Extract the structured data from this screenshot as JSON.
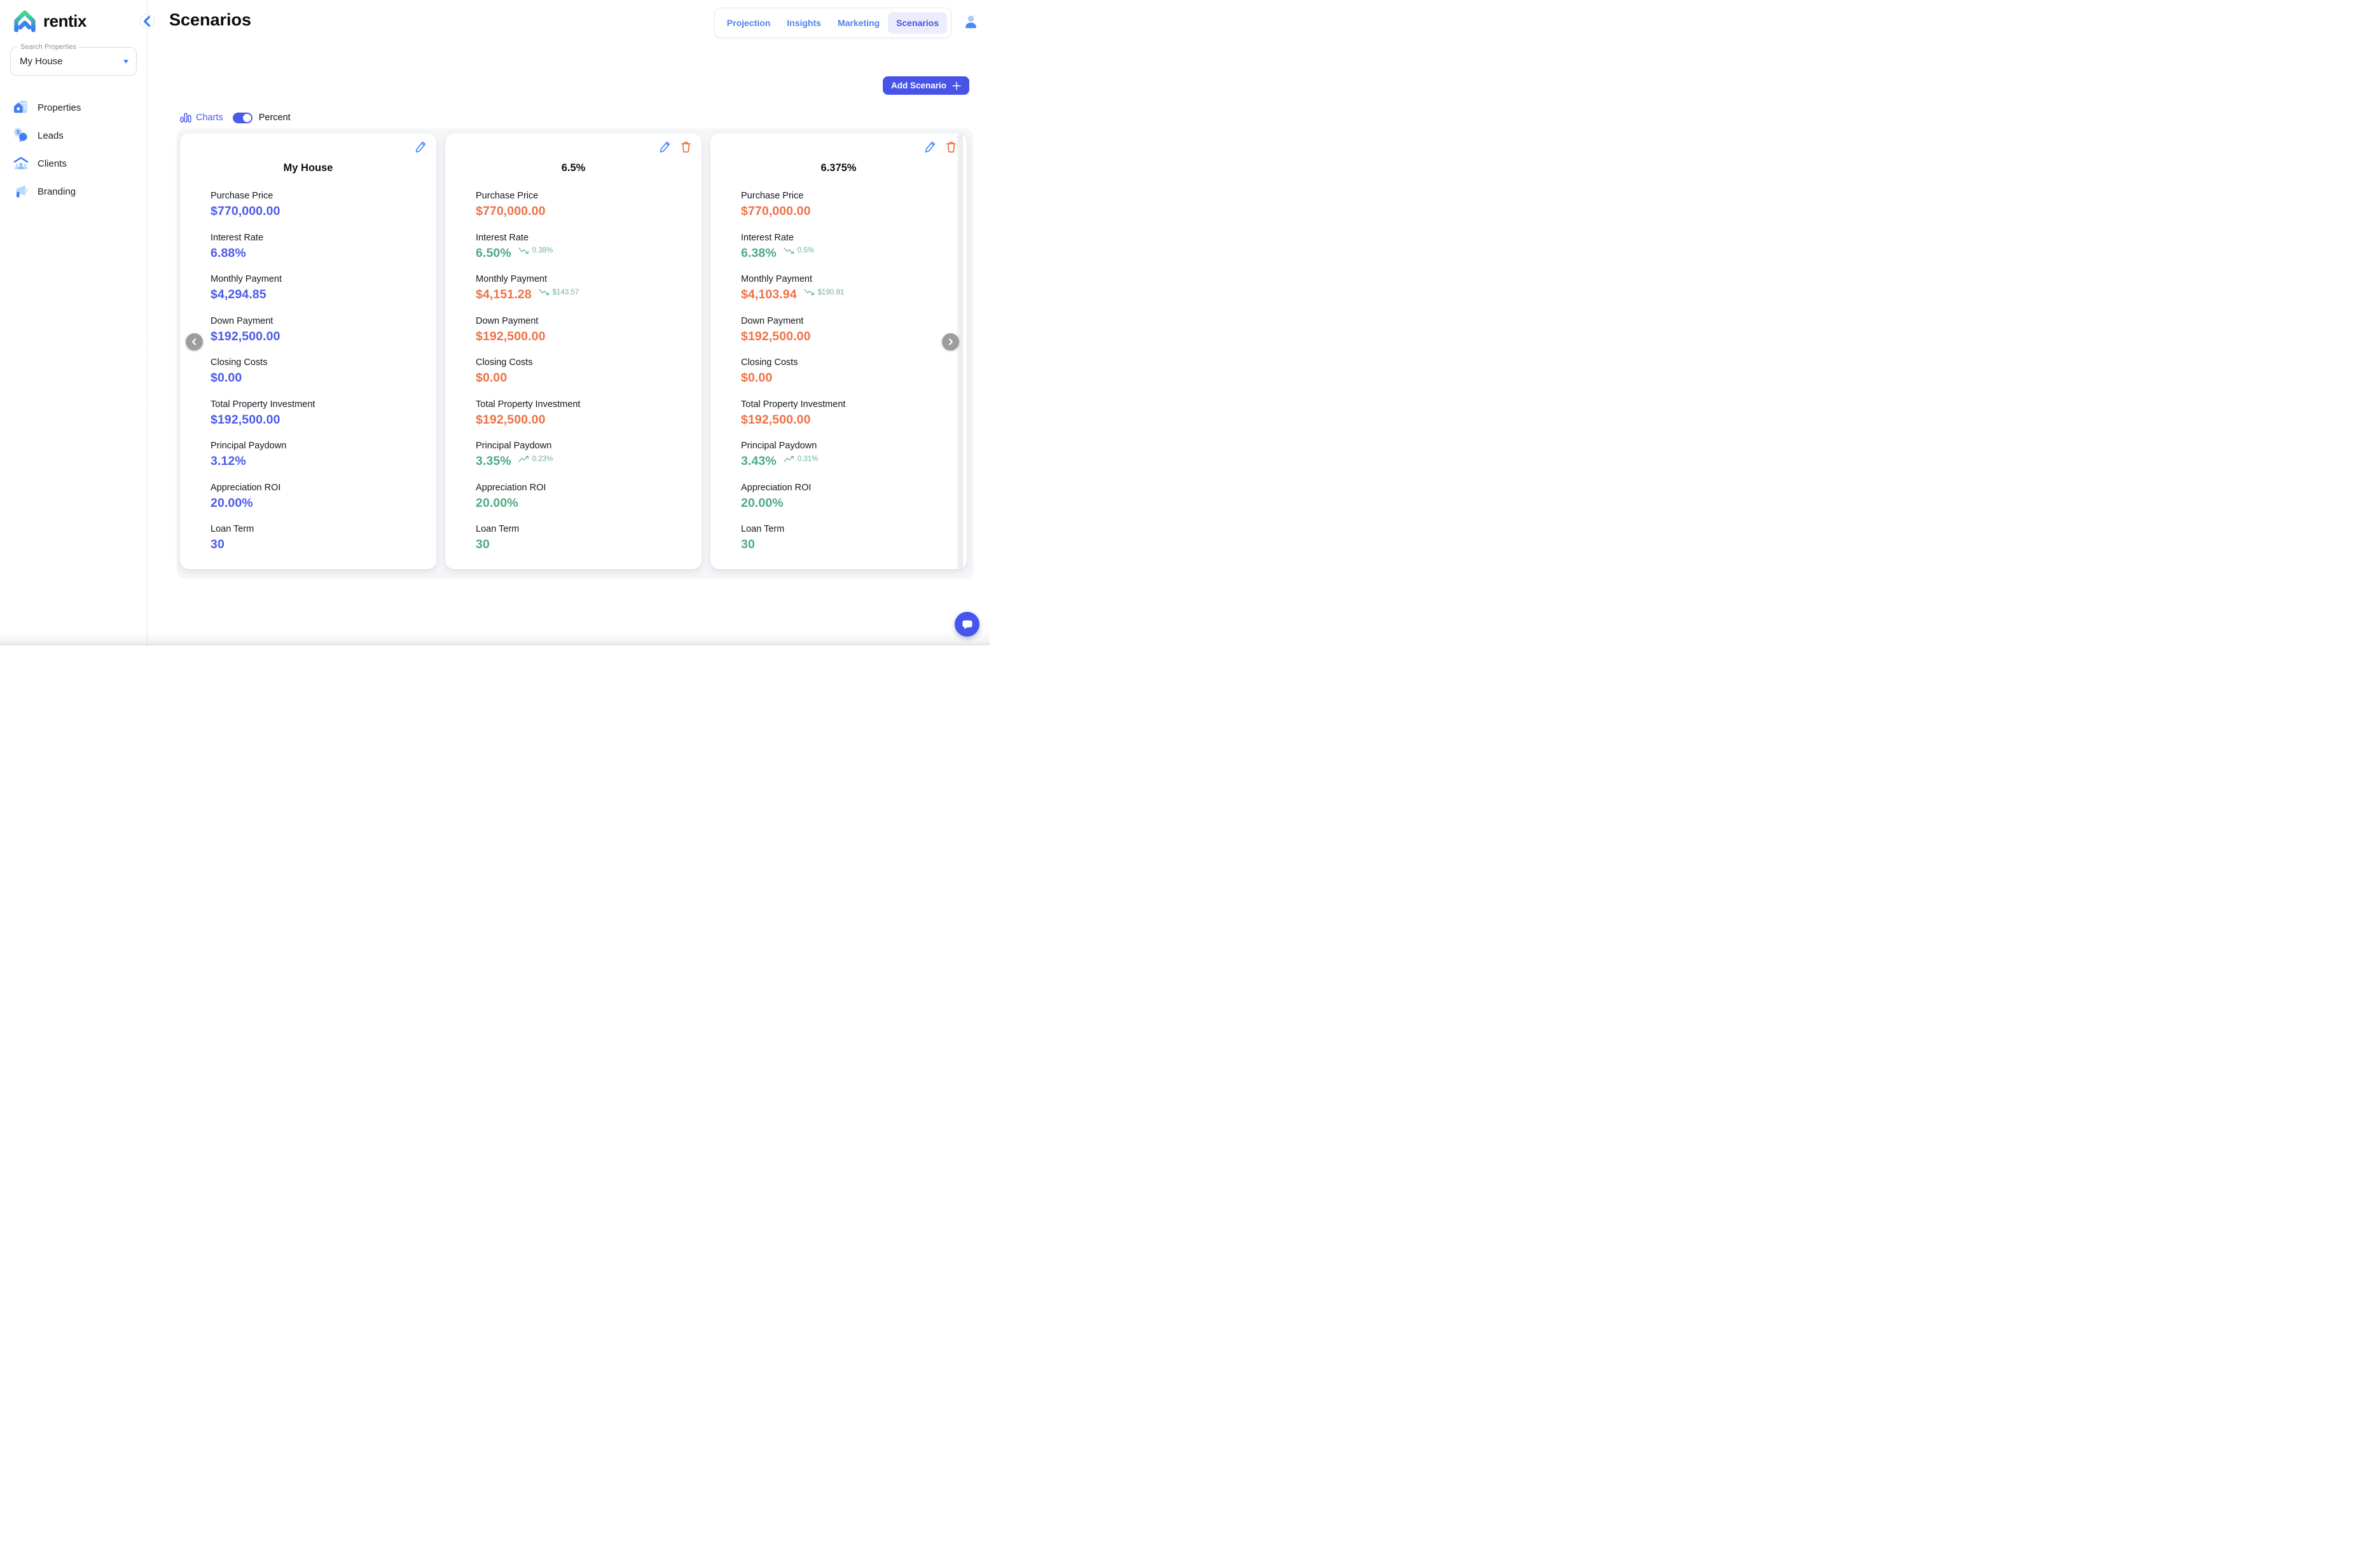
{
  "brand": {
    "name": "rentix"
  },
  "sidebar": {
    "search": {
      "label": "Search Properties",
      "value": "My House"
    },
    "items": [
      {
        "label": "Properties",
        "icon": "properties-icon"
      },
      {
        "label": "Leads",
        "icon": "leads-icon"
      },
      {
        "label": "Clients",
        "icon": "clients-icon"
      },
      {
        "label": "Branding",
        "icon": "branding-icon"
      }
    ]
  },
  "header": {
    "title": "Scenarios",
    "tabs": [
      {
        "label": "Projection",
        "active": false
      },
      {
        "label": "Insights",
        "active": false
      },
      {
        "label": "Marketing",
        "active": false
      },
      {
        "label": "Scenarios",
        "active": true
      }
    ]
  },
  "toolbar": {
    "add_button_label": "Add Scenario",
    "charts_label": "Charts",
    "percent_label": "Percent",
    "percent_toggle_on": true
  },
  "theme": {
    "value_blue": "#4a5be9",
    "value_orange": "#ef7146",
    "value_green": "#4dab83",
    "delta_green": "#69b593",
    "accent_button": "#4854e8",
    "tab_blue": "#4d82f3",
    "active_tab": "#4356e0"
  },
  "cards": [
    {
      "title": "My House",
      "can_delete": false,
      "rows": [
        {
          "label": "Purchase Price",
          "value": "$770,000.00",
          "color": "blue"
        },
        {
          "label": "Interest Rate",
          "value": "6.88%",
          "color": "blue"
        },
        {
          "label": "Monthly Payment",
          "value": "$4,294.85",
          "color": "blue"
        },
        {
          "label": "Down Payment",
          "value": "$192,500.00",
          "color": "blue"
        },
        {
          "label": "Closing Costs",
          "value": "$0.00",
          "color": "blue"
        },
        {
          "label": "Total Property Investment",
          "value": "$192,500.00",
          "color": "blue"
        },
        {
          "label": "Principal Paydown",
          "value": "3.12%",
          "color": "blue"
        },
        {
          "label": "Appreciation ROI",
          "value": "20.00%",
          "color": "blue"
        },
        {
          "label": "Loan Term",
          "value": "30",
          "color": "blue"
        }
      ]
    },
    {
      "title": "6.5%",
      "can_delete": true,
      "rows": [
        {
          "label": "Purchase Price",
          "value": "$770,000.00",
          "color": "orange"
        },
        {
          "label": "Interest Rate",
          "value": "6.50%",
          "color": "green",
          "delta": {
            "direction": "down",
            "text": "0.38%"
          }
        },
        {
          "label": "Monthly Payment",
          "value": "$4,151.28",
          "color": "orange",
          "delta": {
            "direction": "down",
            "text": "$143.57"
          }
        },
        {
          "label": "Down Payment",
          "value": "$192,500.00",
          "color": "orange"
        },
        {
          "label": "Closing Costs",
          "value": "$0.00",
          "color": "orange"
        },
        {
          "label": "Total Property Investment",
          "value": "$192,500.00",
          "color": "orange"
        },
        {
          "label": "Principal Paydown",
          "value": "3.35%",
          "color": "green",
          "delta": {
            "direction": "up",
            "text": "0.23%"
          }
        },
        {
          "label": "Appreciation ROI",
          "value": "20.00%",
          "color": "green"
        },
        {
          "label": "Loan Term",
          "value": "30",
          "color": "green"
        }
      ]
    },
    {
      "title": "6.375%",
      "can_delete": true,
      "rows": [
        {
          "label": "Purchase Price",
          "value": "$770,000.00",
          "color": "orange"
        },
        {
          "label": "Interest Rate",
          "value": "6.38%",
          "color": "green",
          "delta": {
            "direction": "down",
            "text": "0.5%"
          }
        },
        {
          "label": "Monthly Payment",
          "value": "$4,103.94",
          "color": "orange",
          "delta": {
            "direction": "down",
            "text": "$190.91"
          }
        },
        {
          "label": "Down Payment",
          "value": "$192,500.00",
          "color": "orange"
        },
        {
          "label": "Closing Costs",
          "value": "$0.00",
          "color": "orange"
        },
        {
          "label": "Total Property Investment",
          "value": "$192,500.00",
          "color": "orange"
        },
        {
          "label": "Principal Paydown",
          "value": "3.43%",
          "color": "green",
          "delta": {
            "direction": "up",
            "text": "0.31%"
          }
        },
        {
          "label": "Appreciation ROI",
          "value": "20.00%",
          "color": "green"
        },
        {
          "label": "Loan Term",
          "value": "30",
          "color": "green"
        }
      ]
    }
  ]
}
